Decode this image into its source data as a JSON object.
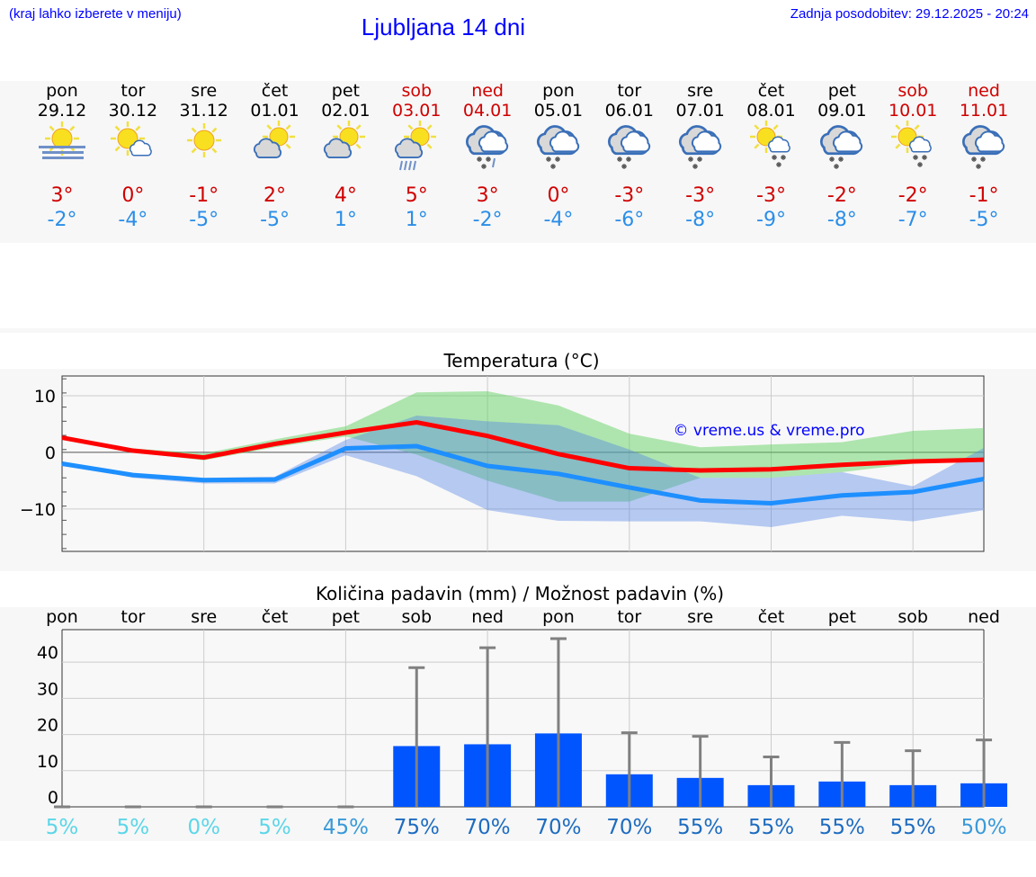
{
  "header": {
    "hint": "(kraj lahko izberete v meniju)",
    "title": "Ljubljana 14 dni",
    "updated": "Zadnja posodobitev: 29.12.2025 - 20:24"
  },
  "days": [
    {
      "name": "pon",
      "date": "29.12",
      "max": "3°",
      "min": "-2°",
      "icon": "fog-sun",
      "weekend": false
    },
    {
      "name": "tor",
      "date": "30.12",
      "max": "0°",
      "min": "-4°",
      "icon": "sun-small-cloud",
      "weekend": false
    },
    {
      "name": "sre",
      "date": "31.12",
      "max": "-1°",
      "min": "-5°",
      "icon": "sun",
      "weekend": false
    },
    {
      "name": "čet",
      "date": "01.01",
      "max": "2°",
      "min": "-5°",
      "icon": "sun-cloud",
      "weekend": false
    },
    {
      "name": "pet",
      "date": "02.01",
      "max": "4°",
      "min": "1°",
      "icon": "sun-cloud",
      "weekend": false
    },
    {
      "name": "sob",
      "date": "03.01",
      "max": "5°",
      "min": "1°",
      "icon": "sun-rain",
      "weekend": true
    },
    {
      "name": "ned",
      "date": "04.01",
      "max": "3°",
      "min": "-2°",
      "icon": "cloud-sleet",
      "weekend": true
    },
    {
      "name": "pon",
      "date": "05.01",
      "max": "0°",
      "min": "-4°",
      "icon": "cloud-snow",
      "weekend": false
    },
    {
      "name": "tor",
      "date": "06.01",
      "max": "-3°",
      "min": "-6°",
      "icon": "cloud-snow",
      "weekend": false
    },
    {
      "name": "sre",
      "date": "07.01",
      "max": "-3°",
      "min": "-8°",
      "icon": "cloud-snow",
      "weekend": false
    },
    {
      "name": "čet",
      "date": "08.01",
      "max": "-3°",
      "min": "-9°",
      "icon": "sun-snow",
      "weekend": false
    },
    {
      "name": "pet",
      "date": "09.01",
      "max": "-2°",
      "min": "-8°",
      "icon": "cloud-snow",
      "weekend": false
    },
    {
      "name": "sob",
      "date": "10.01",
      "max": "-2°",
      "min": "-7°",
      "icon": "sun-snow",
      "weekend": true
    },
    {
      "name": "ned",
      "date": "11.01",
      "max": "-1°",
      "min": "-5°",
      "icon": "cloud-snow",
      "weekend": true
    }
  ],
  "colors": {
    "weekend": "#d00000",
    "max": "#ff0000",
    "min": "#1e8fff",
    "bar": "#0055ff",
    "whisker": "#808080"
  },
  "chart_data": [
    {
      "type": "line",
      "title": "Temperatura (°C)",
      "ylim": [
        -17.5,
        13.5
      ],
      "yticks": [
        "10",
        "0",
        "−10"
      ],
      "ytick_values": [
        10,
        0,
        -10
      ],
      "watermark": "© vreme.us & vreme.pro",
      "max": [
        2.6,
        0.3,
        -0.9,
        1.5,
        3.5,
        5.3,
        2.9,
        -0.3,
        -2.8,
        -3.2,
        -3,
        -2.2,
        -1.6,
        -1.3
      ],
      "min": [
        -2,
        -4,
        -4.9,
        -4.8,
        0.7,
        1.1,
        -2.4,
        -3.8,
        -6.2,
        -8.5,
        -9,
        -7.6,
        -7,
        -4.7
      ],
      "max_band_high": [
        2.6,
        0.7,
        -0.2,
        2.3,
        4.6,
        10.6,
        10.8,
        8.3,
        3.3,
        0.9,
        1.4,
        1.8,
        3.8,
        4.3
      ],
      "max_band_low": [
        2.6,
        0,
        -1.4,
        0.9,
        2.8,
        -0.4,
        -5,
        -8.7,
        -8.7,
        -4.5,
        -4.5,
        -3.5,
        -2,
        -1
      ],
      "min_band_high": [
        -2,
        -3.8,
        -4.5,
        -4.3,
        2.2,
        6.5,
        5.5,
        4.8,
        0.5,
        -4.5,
        -4.5,
        -3.5,
        -6,
        0.8
      ],
      "min_band_low": [
        -2,
        -4.5,
        -5.5,
        -5.5,
        -0.5,
        -4.2,
        -10.2,
        -12.1,
        -12.2,
        -12.2,
        -13.2,
        -11.2,
        -12.2,
        -10.2
      ]
    },
    {
      "type": "bar",
      "title": "Količina padavin (mm) / Možnost padavin (%)",
      "ylim": [
        0,
        49
      ],
      "yticks": [
        "40",
        "30",
        "20",
        "10",
        "0"
      ],
      "ytick_values": [
        40,
        30,
        20,
        10,
        0
      ],
      "categories": [
        "pon",
        "tor",
        "sre",
        "čet",
        "pet",
        "sob",
        "ned",
        "pon",
        "tor",
        "sre",
        "čet",
        "pet",
        "sob",
        "ned"
      ],
      "values": [
        0,
        0,
        0,
        0,
        0,
        16.8,
        17.3,
        20.3,
        9,
        8,
        6,
        7,
        6,
        6.5
      ],
      "error_high": [
        0,
        0,
        0,
        0,
        0,
        38.5,
        44,
        46.5,
        20.5,
        19.5,
        13.8,
        17.8,
        15.5,
        18.5
      ],
      "probability": [
        "5%",
        "5%",
        "0%",
        "5%",
        "45%",
        "75%",
        "70%",
        "70%",
        "70%",
        "55%",
        "55%",
        "55%",
        "55%",
        "50%"
      ],
      "probability_colors": [
        "#5cd6e8",
        "#5cd6e8",
        "#5cd6e8",
        "#5cd6e8",
        "#3a9ad8",
        "#1e6cc0",
        "#1e6cc0",
        "#1e6cc0",
        "#1e6cc0",
        "#1e6cc0",
        "#1e6cc0",
        "#1e6cc0",
        "#1e6cc0",
        "#3a9ad8"
      ]
    }
  ]
}
